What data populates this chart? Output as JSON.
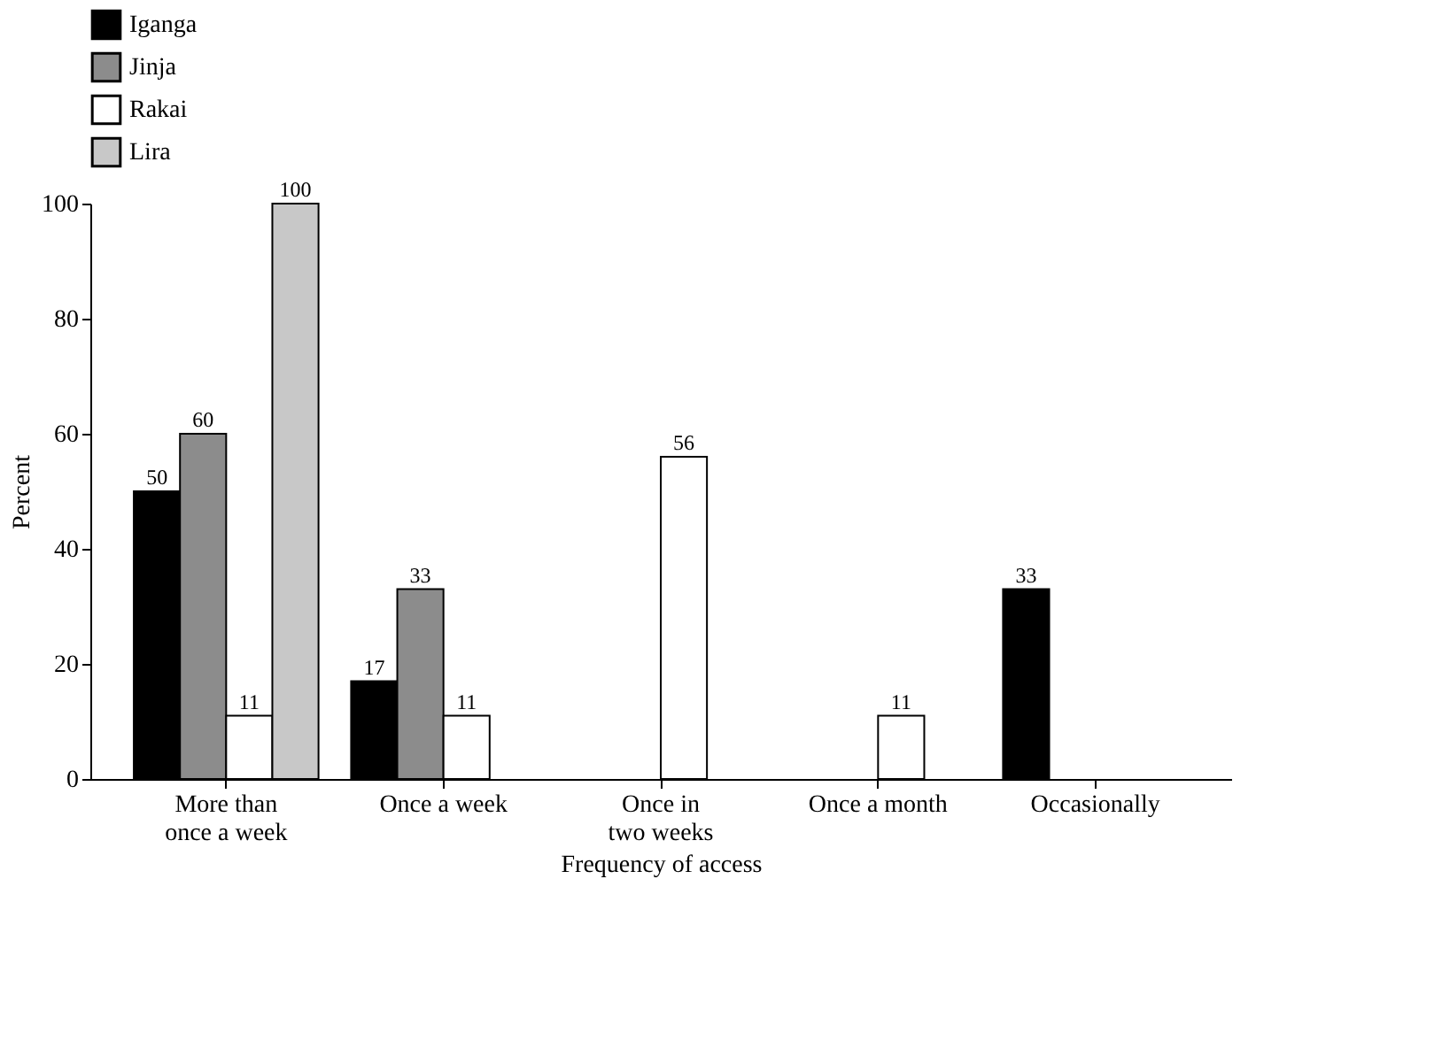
{
  "chart_data": {
    "type": "bar",
    "xlabel": "Frequency of access",
    "ylabel": "Percent",
    "categories": [
      "More than\nonce a week",
      "Once a week",
      "Once in\ntwo weeks",
      "Once a month",
      "Occasionally"
    ],
    "series": [
      {
        "name": "Iganga",
        "color": "#000000",
        "values": [
          50,
          17,
          null,
          null,
          33
        ]
      },
      {
        "name": "Jinja",
        "color": "#8c8c8c",
        "values": [
          60,
          33,
          null,
          null,
          null
        ]
      },
      {
        "name": "Rakai",
        "color": "#ffffff",
        "values": [
          11,
          11,
          56,
          11,
          null
        ]
      },
      {
        "name": "Lira",
        "color": "#c8c8c8",
        "values": [
          100,
          null,
          null,
          null,
          null
        ]
      }
    ],
    "ylim": [
      0,
      100
    ],
    "yticks": [
      0,
      20,
      40,
      60,
      80,
      100
    ],
    "grid": false,
    "legend": "top",
    "data_labels": true
  }
}
